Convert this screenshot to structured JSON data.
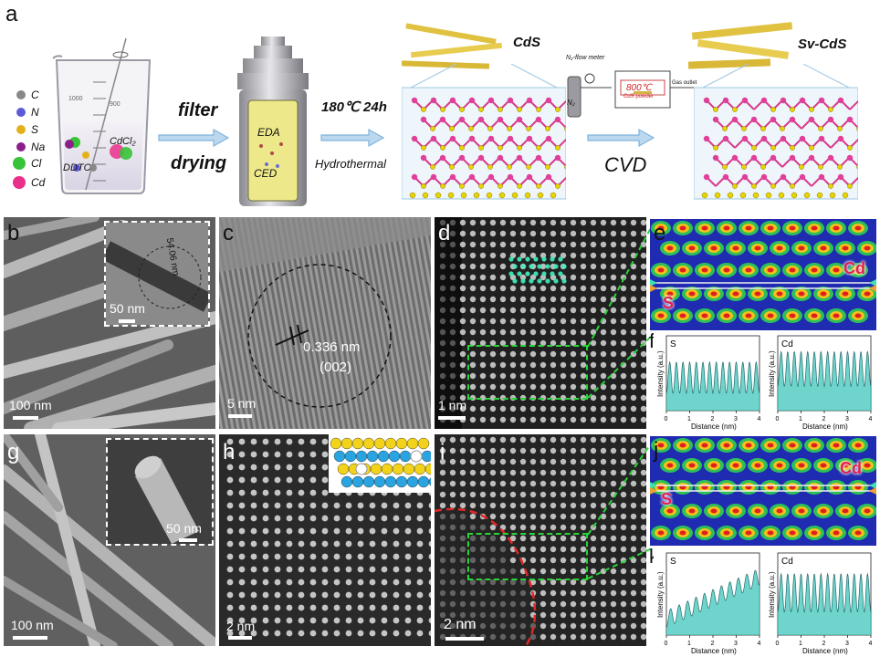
{
  "panels": {
    "a": "a",
    "b": "b",
    "c": "c",
    "d": "d",
    "e": "e",
    "f": "f",
    "g": "g",
    "h": "h",
    "i": "i",
    "j": "j",
    "k": "k"
  },
  "legend": [
    {
      "label": "C",
      "color": "#888888"
    },
    {
      "label": "N",
      "color": "#5b5bd6"
    },
    {
      "label": "S",
      "color": "#e3b21b"
    },
    {
      "label": "Na",
      "color": "#8a1e8a"
    },
    {
      "label": "Cl",
      "color": "#38c338"
    },
    {
      "label": "Cd",
      "color": "#ea2f8a"
    }
  ],
  "beaker": {
    "ticks": [
      "1000",
      "900",
      "800",
      "700",
      "600",
      "500",
      "400"
    ],
    "ddtc": "DDTC",
    "cdcl2": "CdCl₂"
  },
  "steps": {
    "filter": "filter",
    "drying": "drying",
    "condition": "180℃  24h",
    "hydrothermal": "Hydrothermal",
    "eda": "EDA",
    "ced": "CED",
    "cvd": "CVD",
    "cds": "CdS",
    "sv_cds": "Sv-CdS",
    "flow_meter": "N₂-flow meter",
    "n2": "N₂",
    "furnace_temp": "800℃",
    "furnace_label": "CdS powder",
    "gas_outlet": "Gas outlet"
  },
  "scalebars": {
    "b_main": "100 nm",
    "b_inset": "50 nm",
    "b_diameter": "54.06 nm",
    "c": "5 nm",
    "c_spacing": "0.336 nm",
    "c_plane": "(002)",
    "d": "1 nm",
    "g_main": "100 nm",
    "g_inset": "50 nm",
    "h": "2 nm",
    "i": "2 nm"
  },
  "maps": {
    "e_cd": "Cd",
    "e_s": "S",
    "j_cd": "Cd",
    "j_s": "S"
  },
  "plots": {
    "f_s": {
      "title": "S",
      "ylabel": "Intensity (a.u.)",
      "xlabel": "Distance (nm)",
      "ticks": [
        "0",
        "1",
        "2",
        "3",
        "4"
      ]
    },
    "f_cd": {
      "title": "Cd",
      "ylabel": "Intensity (a.u.)",
      "xlabel": "Distance (nm)",
      "ticks": [
        "0",
        "1",
        "2",
        "3",
        "4"
      ]
    },
    "k_s": {
      "title": "S",
      "ylabel": "Intensity (a.u.)",
      "xlabel": "Distance (nm)",
      "ticks": [
        "0",
        "1",
        "2",
        "3",
        "4"
      ]
    },
    "k_cd": {
      "title": "Cd",
      "ylabel": "Intensity (a.u.)",
      "xlabel": "Distance (nm)",
      "ticks": [
        "0",
        "1",
        "2",
        "3",
        "4"
      ]
    }
  },
  "colors": {
    "arrow": "#7fb3dc",
    "box_line": "#29d43a",
    "cd_atom": "#e0409a",
    "s_atom": "#e8d400",
    "rod": "#e0c240",
    "fill_cyan": "#3fc6bb"
  }
}
